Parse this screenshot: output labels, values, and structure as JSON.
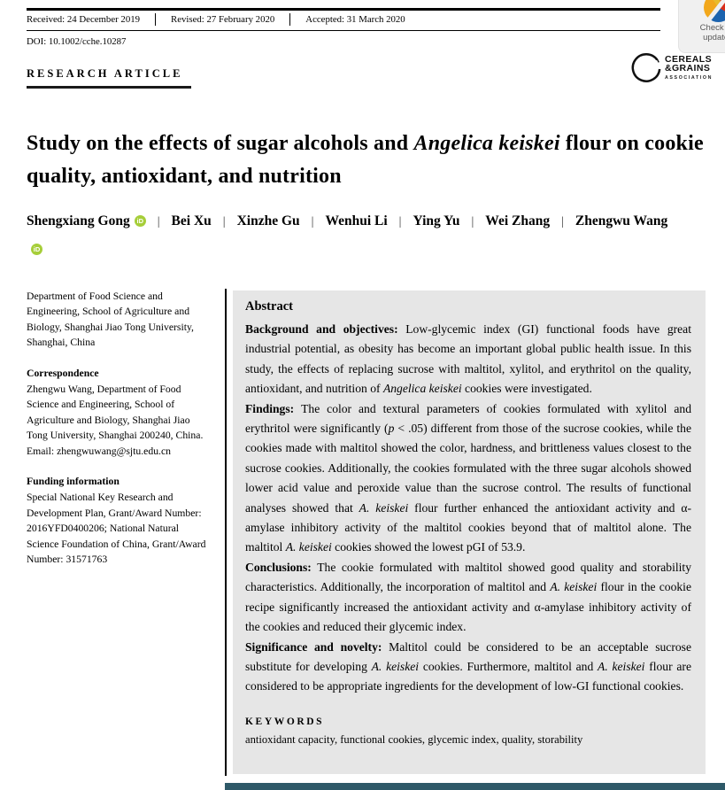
{
  "meta_bar": {
    "received": "Received: 24 December 2019",
    "revised": "Revised: 27 February 2020",
    "accepted": "Accepted: 31 March 2020",
    "doi": "DOI: 10.1002/cche.10287"
  },
  "crossmark": {
    "line1": "Check for",
    "line2": "updates"
  },
  "publisher_logo": {
    "line1": "CEREALS",
    "line2": "&GRAINS",
    "line3": "ASSOCIATION"
  },
  "article": {
    "category": "RESEARCH ARTICLE",
    "title_part1": "Study on the effects of sugar alcohols and ",
    "title_italic": "Angelica keiskei",
    "title_part2": " flour on cookie quality, antioxidant, and nutrition",
    "authors": [
      {
        "name": "Shengxiang Gong",
        "orcid": true
      },
      {
        "name": "Bei Xu",
        "orcid": false
      },
      {
        "name": "Xinzhe Gu",
        "orcid": false
      },
      {
        "name": "Wenhui Li",
        "orcid": false
      },
      {
        "name": "Ying Yu",
        "orcid": false
      },
      {
        "name": "Wei Zhang",
        "orcid": false
      },
      {
        "name": "Zhengwu Wang",
        "orcid": true
      }
    ]
  },
  "left_column": {
    "affiliation": "Department of Food Science and Engineering, School of Agriculture and Biology, Shanghai Jiao Tong University, Shanghai, China",
    "correspondence_heading": "Correspondence",
    "correspondence_body": "Zhengwu Wang, Department of Food Science and Engineering, School of Agriculture and Biology, Shanghai Jiao Tong University, Shanghai 200240, China.",
    "correspondence_email": "Email: zhengwuwang@sjtu.edu.cn",
    "funding_heading": "Funding information",
    "funding_body": "Special National Key Research and Development Plan, Grant/Award Number: 2016YFD0400206; National Natural Science Foundation of China, Grant/Award Number: 31571763"
  },
  "abstract": {
    "heading": "Abstract",
    "paragraphs": [
      [
        {
          "b": true,
          "t": "Background and objectives: "
        },
        {
          "t": "Low-glycemic index (GI) functional foods have great industrial potential, as obesity has become an important global public health issue. In this study, the effects of replacing sucrose with maltitol, xylitol, and erythritol on the quality, antioxidant, and nutrition of "
        },
        {
          "i": true,
          "t": "Angelica keiskei"
        },
        {
          "t": " cookies were investigated."
        }
      ],
      [
        {
          "b": true,
          "t": "Findings: "
        },
        {
          "t": "The color and textural parameters of cookies formulated with xylitol and erythritol were significantly ("
        },
        {
          "i": true,
          "t": "p"
        },
        {
          "t": " < .05) different from those of the sucrose cookies, while the cookies made with maltitol showed the color, hardness, and brittleness values closest to the sucrose cookies. Additionally, the cookies formulated with the three sugar alcohols showed lower acid value and peroxide value than the sucrose control. The results of functional analyses showed that "
        },
        {
          "i": true,
          "t": "A. keiskei"
        },
        {
          "t": " flour further enhanced the antioxidant activity and α-amylase inhibitory activity of the maltitol cookies beyond that of maltitol alone. The maltitol "
        },
        {
          "i": true,
          "t": "A. keiskei"
        },
        {
          "t": " cookies showed the lowest pGI of 53.9."
        }
      ],
      [
        {
          "b": true,
          "t": "Conclusions: "
        },
        {
          "t": "The cookie formulated with maltitol showed good quality and storability characteristics. Additionally, the incorporation of maltitol and "
        },
        {
          "i": true,
          "t": "A. keiskei"
        },
        {
          "t": " flour in the cookie recipe significantly increased the antioxidant activity and α-amylase inhibitory activity of the cookies and reduced their glycemic index."
        }
      ],
      [
        {
          "b": true,
          "t": "Significance and novelty: "
        },
        {
          "t": "Maltitol could be considered to be an acceptable sucrose substitute for developing "
        },
        {
          "i": true,
          "t": "A. keiskei"
        },
        {
          "t": " cookies. Furthermore, maltitol and "
        },
        {
          "i": true,
          "t": "A. keiskei"
        },
        {
          "t": " flour are considered to be appropriate ingredients for the development of low-GI functional cookies."
        }
      ]
    ],
    "keywords_heading": "KEYWORDS",
    "keywords": "antioxidant capacity, functional cookies, glycemic index, quality, storability"
  },
  "colors": {
    "abstract_bg": "#e6e6e6",
    "orcid_green": "#a6ce39",
    "bottom_bar": "#2e5968",
    "crossmark_red": "#d92e1c",
    "crossmark_blue": "#1c63ae",
    "crossmark_orange": "#f2a71b"
  }
}
